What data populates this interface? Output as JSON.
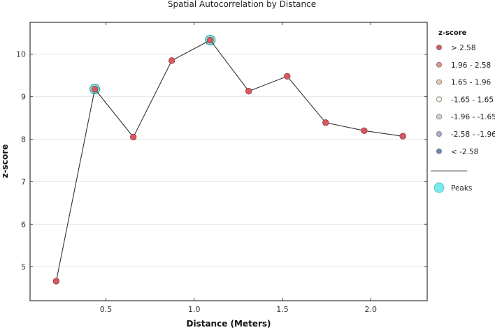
{
  "chart_data": {
    "type": "line",
    "title": "Spatial Autocorrelation by Distance",
    "xlabel": "Distance (Meters)",
    "ylabel": "z-score",
    "xlim": [
      0.07,
      2.32
    ],
    "ylim": [
      4.2,
      10.75
    ],
    "xticks": [
      0.5,
      1.0,
      1.5,
      2.0
    ],
    "xtick_labels": [
      "0.5",
      "1.0",
      "1.5",
      "2.0"
    ],
    "yticks": [
      5,
      6,
      7,
      8,
      9,
      10
    ],
    "ytick_labels": [
      "5",
      "6",
      "7",
      "8",
      "9",
      "10"
    ],
    "grid": "horizontal",
    "x": [
      0.218,
      0.437,
      0.655,
      0.873,
      1.091,
      1.309,
      1.527,
      1.745,
      1.963,
      2.182
    ],
    "series": [
      {
        "name": "z-score",
        "values": [
          4.66,
          9.18,
          8.05,
          9.85,
          10.33,
          9.13,
          9.48,
          8.39,
          8.2,
          8.07
        ],
        "color": "#d9585f",
        "category": "> 2.58"
      }
    ],
    "peaks": [
      {
        "x": 0.437,
        "y": 9.18
      },
      {
        "x": 1.091,
        "y": 10.33
      }
    ],
    "legend": {
      "position": "right",
      "title": "z-score",
      "items": [
        {
          "label": "> 2.58",
          "color": "#d9585f"
        },
        {
          "label": "1.96 - 2.58",
          "color": "#e49490"
        },
        {
          "label": "1.65 - 1.96",
          "color": "#eec4a8"
        },
        {
          "label": "-1.65 - 1.65",
          "color": "#fbfbea"
        },
        {
          "label": "-1.96 - -1.65",
          "color": "#cfcfd4"
        },
        {
          "label": "-2.58 - -1.96",
          "color": "#a6b0cc"
        },
        {
          "label": "< -2.58",
          "color": "#7086c0"
        }
      ],
      "peaks_label": "Peaks",
      "peaks_color": "#7ce8e8"
    }
  }
}
